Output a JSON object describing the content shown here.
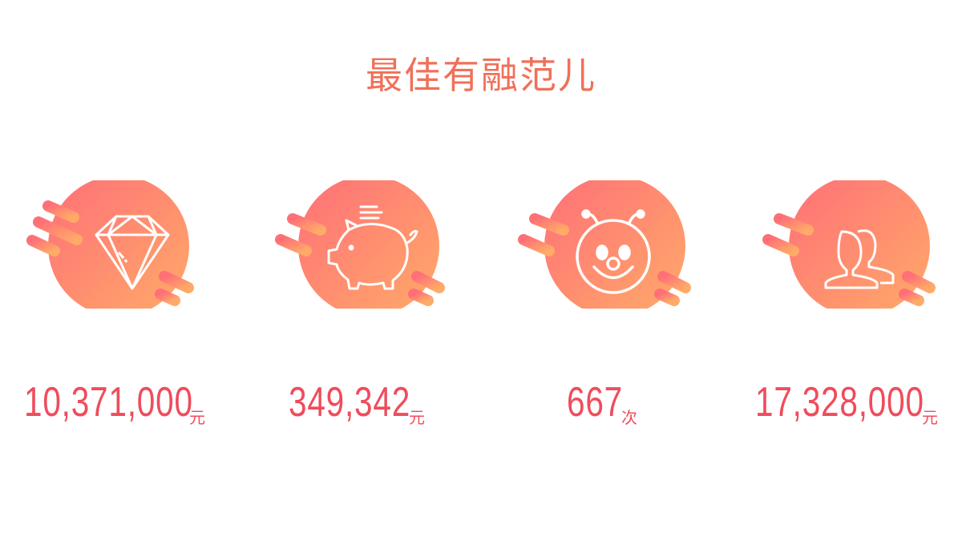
{
  "title": "最佳有融范儿",
  "colors": {
    "gradient_start": "#ff7075",
    "gradient_end": "#ffa86a",
    "text": "#ef4c5c",
    "title": "#f07058"
  },
  "stats": [
    {
      "icon": "diamond-icon",
      "value": "10,371,000",
      "unit": "元"
    },
    {
      "icon": "piggy-bank-icon",
      "value": "349,342",
      "unit": "元"
    },
    {
      "icon": "smiley-bee-icon",
      "value": "667",
      "unit": "次"
    },
    {
      "icon": "users-icon",
      "value": "17,328,000",
      "unit": "元"
    }
  ]
}
